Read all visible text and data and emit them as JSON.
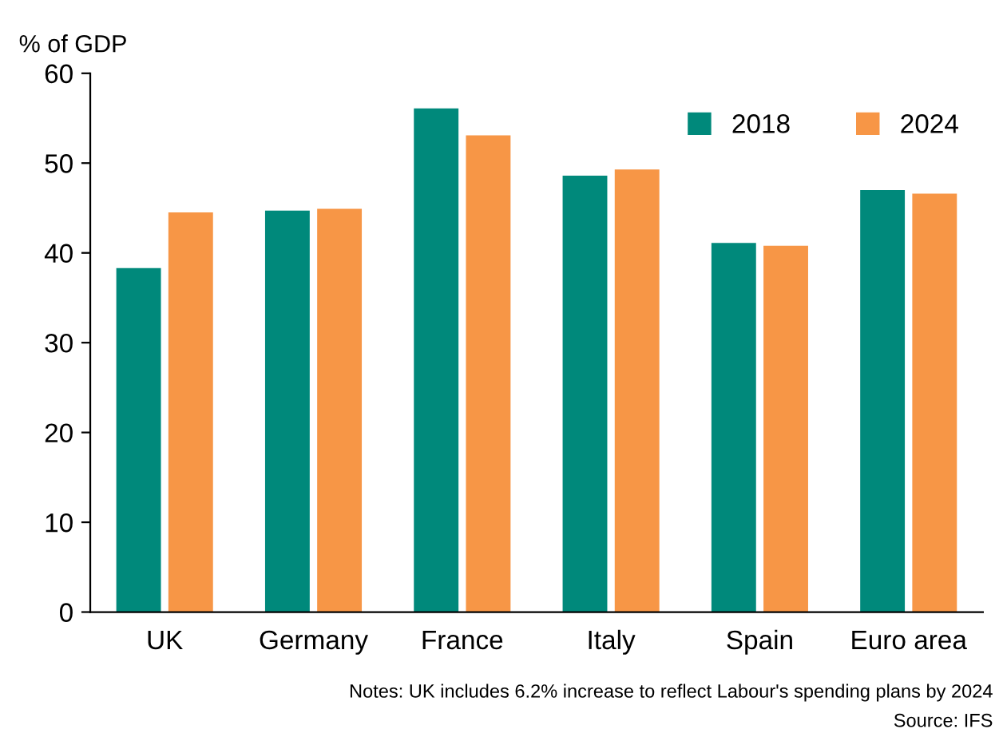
{
  "chart_data": {
    "type": "bar",
    "ylabel": "% of GDP",
    "categories": [
      "UK",
      "Germany",
      "France",
      "Italy",
      "Spain",
      "Euro area"
    ],
    "series": [
      {
        "name": "2018",
        "color": "#00897b",
        "values": [
          38.3,
          44.7,
          56.1,
          48.6,
          41.1,
          47.0
        ]
      },
      {
        "name": "2024",
        "color": "#f79646",
        "values": [
          44.5,
          44.9,
          53.1,
          49.3,
          40.8,
          46.6
        ]
      }
    ],
    "ylim": [
      0,
      60
    ],
    "yticks": [
      0,
      10,
      20,
      30,
      40,
      50,
      60
    ],
    "grid": false,
    "legend": "top right",
    "annotations": [
      "Notes: UK includes 6.2% increase to reflect Labour's spending plans by 2024",
      "Source: IFS"
    ]
  }
}
